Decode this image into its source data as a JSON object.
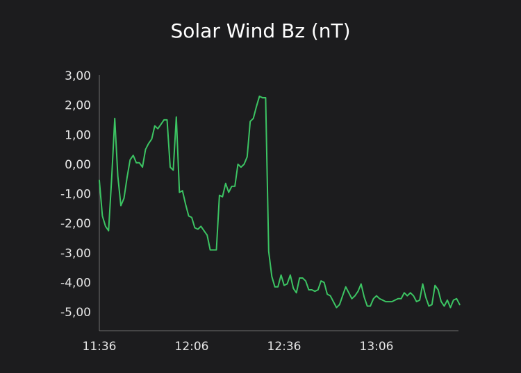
{
  "chart_data": {
    "type": "line",
    "title": "Solar Wind Bz (nT)",
    "xlabel": "",
    "ylabel": "",
    "ylim": [
      -5.5,
      3.0
    ],
    "yticks": [
      3,
      2,
      1,
      0,
      -1,
      -2,
      -3,
      -4,
      -5
    ],
    "ytick_labels": [
      "3,00",
      "2,00",
      "1,00",
      "0,00",
      "-1,00",
      "-2,00",
      "-3,00",
      "-4,00",
      "-5,00"
    ],
    "xlim": [
      0,
      118
    ],
    "xticks": [
      0,
      30,
      60,
      90
    ],
    "xtick_labels": [
      "11:36",
      "12:06",
      "12:36",
      "13:06"
    ],
    "x_unit": "minutes since 11:36",
    "line_color": "#3cc463",
    "grid": false,
    "legend": "none",
    "series": [
      {
        "values": [
          [
            0,
            -0.55
          ],
          [
            1,
            -1.75
          ],
          [
            2,
            -2.1
          ],
          [
            3,
            -2.25
          ],
          [
            4,
            -0.5
          ],
          [
            5,
            1.55
          ],
          [
            6,
            -0.4
          ],
          [
            7,
            -1.4
          ],
          [
            8,
            -1.15
          ],
          [
            9,
            -0.45
          ],
          [
            10,
            0.15
          ],
          [
            11,
            0.3
          ],
          [
            12,
            0.05
          ],
          [
            13,
            0.05
          ],
          [
            14,
            -0.1
          ],
          [
            15,
            0.5
          ],
          [
            16,
            0.7
          ],
          [
            17,
            0.85
          ],
          [
            18,
            1.3
          ],
          [
            19,
            1.2
          ],
          [
            20,
            1.35
          ],
          [
            21,
            1.5
          ],
          [
            22,
            1.5
          ],
          [
            23,
            -0.1
          ],
          [
            24,
            -0.2
          ],
          [
            25,
            1.6
          ],
          [
            26,
            -0.95
          ],
          [
            27,
            -0.9
          ],
          [
            28,
            -1.35
          ],
          [
            29,
            -1.75
          ],
          [
            30,
            -1.8
          ],
          [
            31,
            -2.15
          ],
          [
            32,
            -2.2
          ],
          [
            33,
            -2.1
          ],
          [
            34,
            -2.25
          ],
          [
            35,
            -2.4
          ],
          [
            36,
            -2.9
          ],
          [
            37,
            -2.9
          ],
          [
            38,
            -2.9
          ],
          [
            39,
            -1.05
          ],
          [
            40,
            -1.1
          ],
          [
            41,
            -0.65
          ],
          [
            42,
            -0.95
          ],
          [
            43,
            -0.75
          ],
          [
            44,
            -0.75
          ],
          [
            45,
            0.0
          ],
          [
            46,
            -0.1
          ],
          [
            47,
            0.0
          ],
          [
            48,
            0.25
          ],
          [
            49,
            1.45
          ],
          [
            50,
            1.55
          ],
          [
            51,
            1.95
          ],
          [
            52,
            2.3
          ],
          [
            53,
            2.25
          ],
          [
            54,
            2.25
          ],
          [
            55,
            -2.95
          ],
          [
            56,
            -3.8
          ],
          [
            57,
            -4.15
          ],
          [
            58,
            -4.15
          ],
          [
            59,
            -3.75
          ],
          [
            60,
            -4.1
          ],
          [
            61,
            -4.05
          ],
          [
            62,
            -3.75
          ],
          [
            63,
            -4.2
          ],
          [
            64,
            -4.35
          ],
          [
            65,
            -3.85
          ],
          [
            66,
            -3.85
          ],
          [
            67,
            -3.95
          ],
          [
            68,
            -4.25
          ],
          [
            69,
            -4.25
          ],
          [
            70,
            -4.3
          ],
          [
            71,
            -4.25
          ],
          [
            72,
            -3.95
          ],
          [
            73,
            -4.0
          ],
          [
            74,
            -4.4
          ],
          [
            75,
            -4.45
          ],
          [
            76,
            -4.65
          ],
          [
            77,
            -4.85
          ],
          [
            78,
            -4.75
          ],
          [
            79,
            -4.45
          ],
          [
            80,
            -4.15
          ],
          [
            81,
            -4.35
          ],
          [
            82,
            -4.55
          ],
          [
            83,
            -4.45
          ],
          [
            84,
            -4.3
          ],
          [
            85,
            -4.05
          ],
          [
            86,
            -4.5
          ],
          [
            87,
            -4.8
          ],
          [
            88,
            -4.8
          ],
          [
            89,
            -4.55
          ],
          [
            90,
            -4.45
          ],
          [
            91,
            -4.55
          ],
          [
            92,
            -4.6
          ],
          [
            93,
            -4.65
          ],
          [
            94,
            -4.65
          ],
          [
            95,
            -4.65
          ],
          [
            96,
            -4.6
          ],
          [
            97,
            -4.55
          ],
          [
            98,
            -4.55
          ],
          [
            99,
            -4.35
          ],
          [
            100,
            -4.45
          ],
          [
            101,
            -4.35
          ],
          [
            102,
            -4.45
          ],
          [
            103,
            -4.65
          ],
          [
            104,
            -4.6
          ],
          [
            105,
            -4.05
          ],
          [
            106,
            -4.5
          ],
          [
            107,
            -4.8
          ],
          [
            108,
            -4.75
          ],
          [
            109,
            -4.1
          ],
          [
            110,
            -4.25
          ],
          [
            111,
            -4.65
          ],
          [
            112,
            -4.8
          ],
          [
            113,
            -4.6
          ],
          [
            114,
            -4.85
          ],
          [
            115,
            -4.6
          ],
          [
            116,
            -4.55
          ],
          [
            117,
            -4.75
          ]
        ]
      }
    ]
  }
}
